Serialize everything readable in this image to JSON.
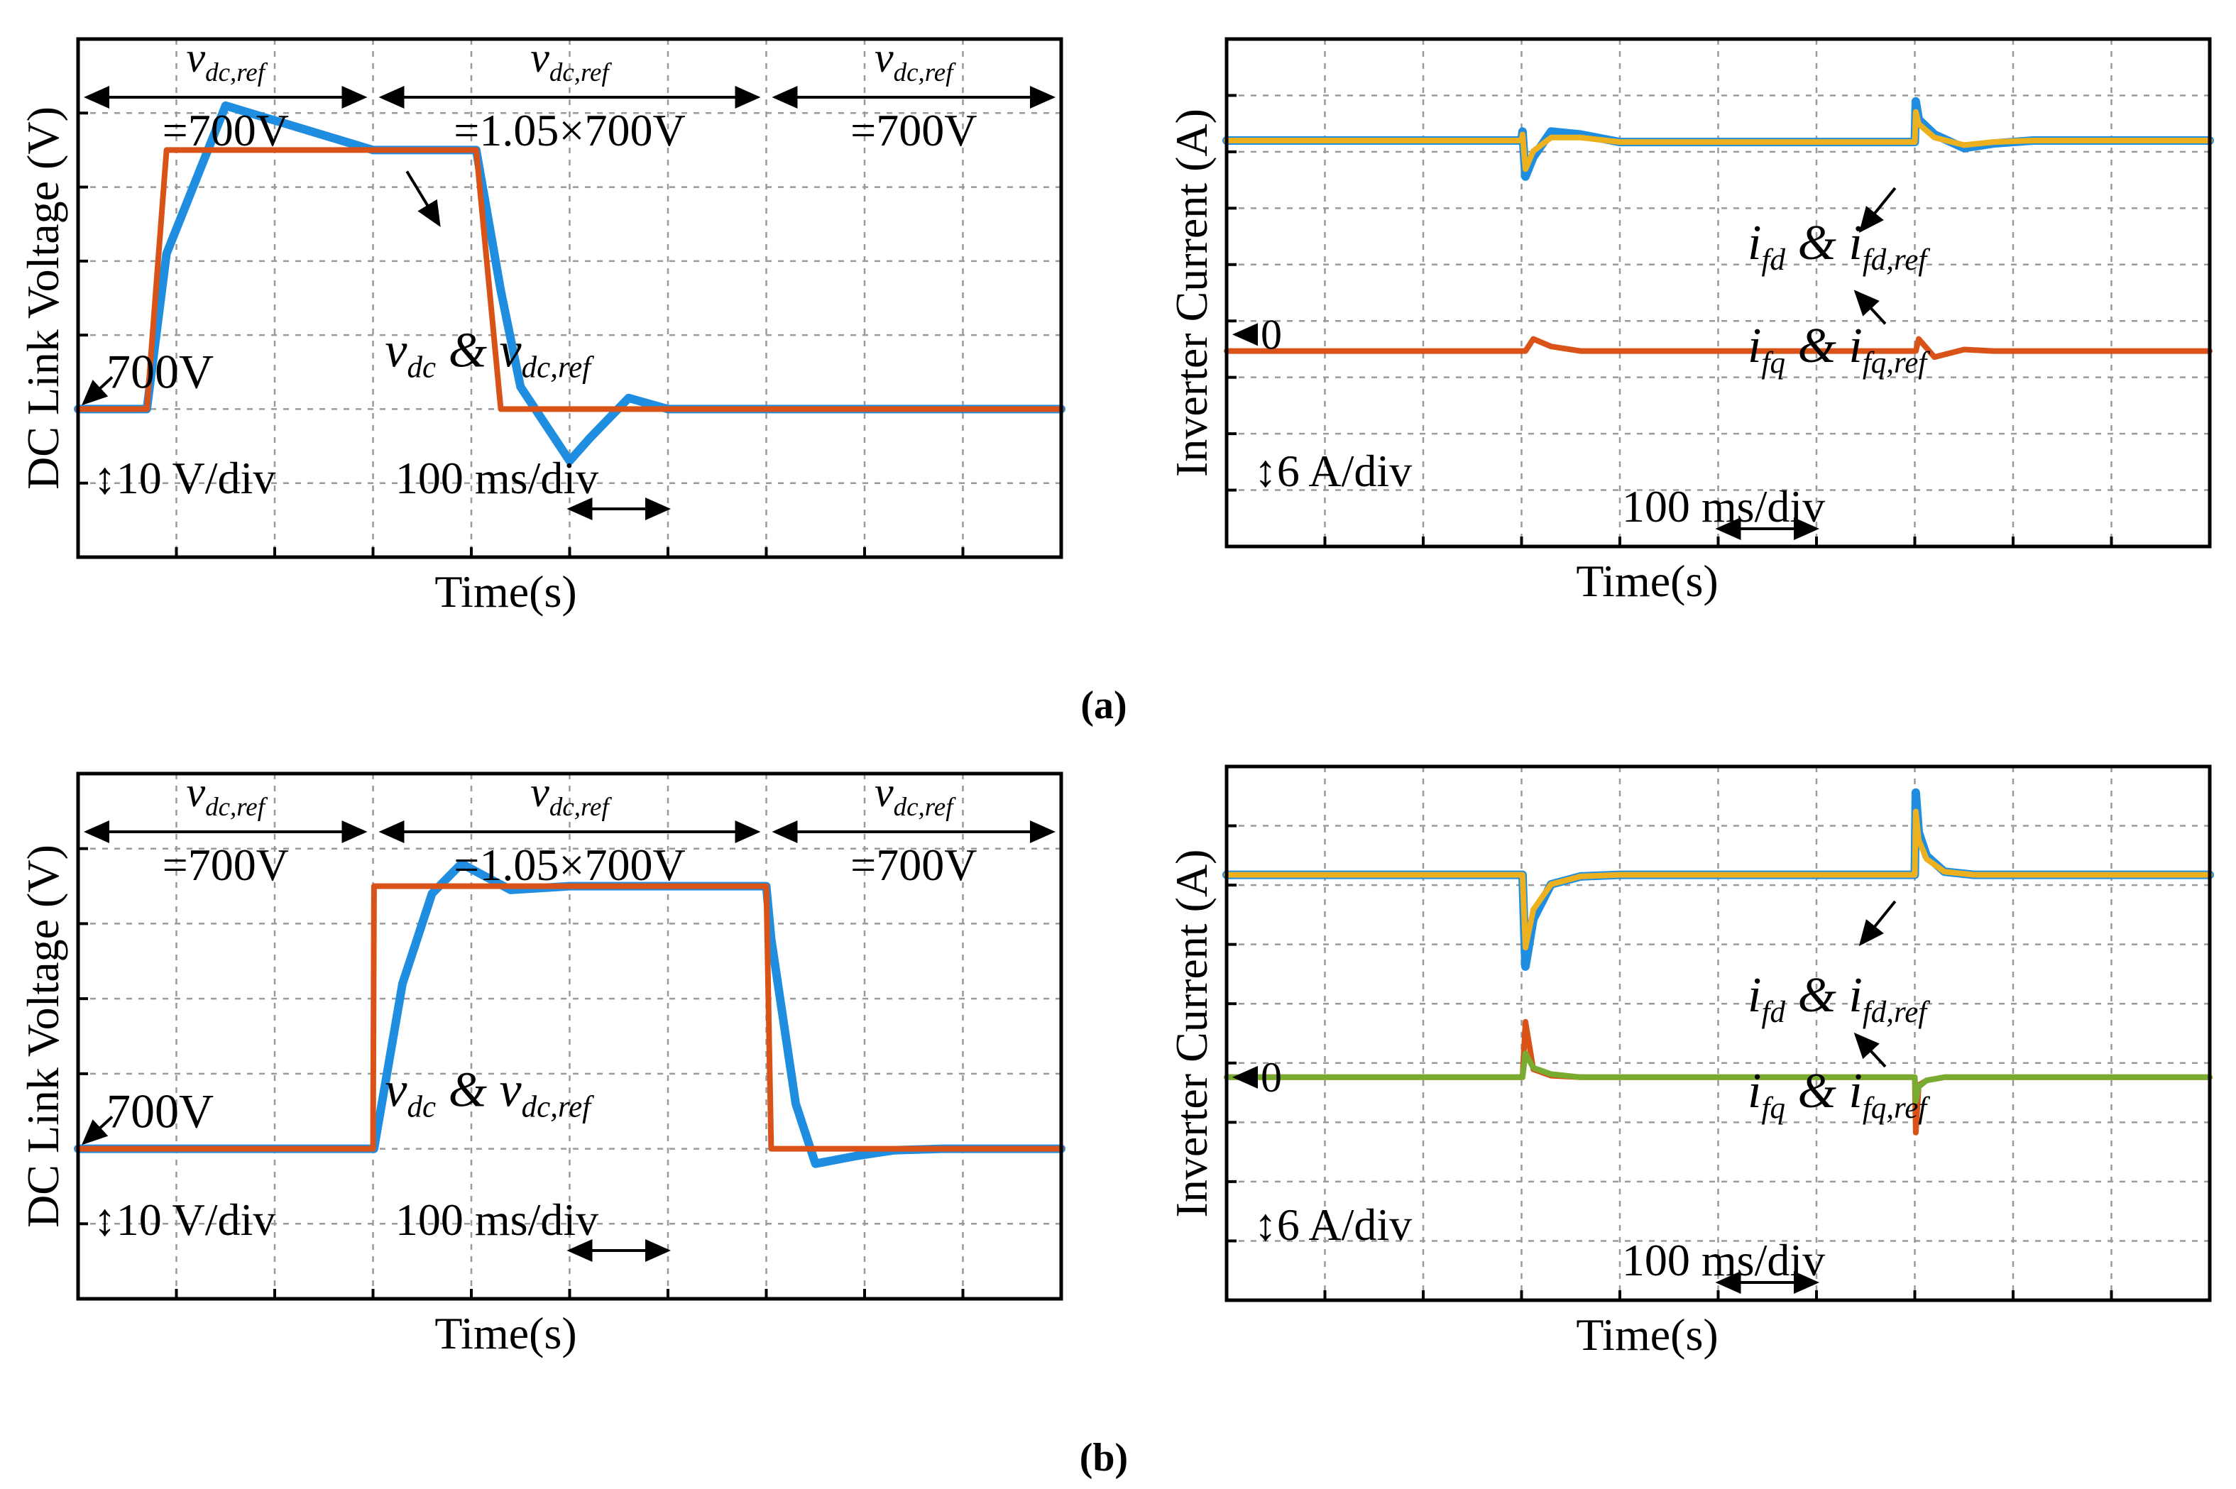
{
  "colors": {
    "measured": "#1f8ee0",
    "reference_step": "#d95319",
    "id_reference": "#edb120",
    "iq_measured": "#d95319",
    "iq_reference_b": "#77ac30",
    "grid": "#9a9a9a"
  },
  "panel_labels": {
    "a": "(a)",
    "b": "(b)"
  },
  "chart_data": [
    {
      "id": "a-left",
      "type": "line",
      "ylabel": "DC Link Voltage (V)",
      "xlabel": "Time(s)",
      "xdivs": 10,
      "ydivs": 7,
      "ylim": [
        -20,
        50
      ],
      "x": [
        0,
        0.3,
        0.4,
        0.6,
        0.7,
        0.9,
        1.5,
        3.0,
        4.0,
        4.05,
        4.3,
        4.5,
        4.8,
        5.0,
        5.2,
        5.6,
        6.0,
        6.4,
        7.0,
        10
      ],
      "series": [
        {
          "name": "v_dc",
          "color_key": "measured",
          "values": [
            0,
            0,
            0,
            0,
            0,
            21,
            41,
            35,
            35,
            35,
            16,
            3,
            -3,
            -7,
            -4,
            1.5,
            0,
            0,
            0,
            0
          ]
        },
        {
          "name": "v_dc_ref",
          "color_key": "reference_step",
          "values": [
            0,
            0,
            0,
            0,
            0,
            35,
            35,
            35,
            35,
            35,
            0,
            0,
            0,
            0,
            0,
            0,
            0,
            0,
            0,
            0
          ]
        }
      ],
      "segments": [
        {
          "top": "v",
          "sub": "dc,ref",
          "value": "=700V"
        },
        {
          "top": "v",
          "sub": "dc,ref",
          "value": "=1.05×700V"
        },
        {
          "top": "v",
          "sub": "dc,ref",
          "value": "=700V"
        }
      ],
      "base_label": "700V",
      "scale_label": "10 V/div",
      "time_label": "100 ms/div",
      "legend": [
        {
          "t": "v",
          "s": "dc"
        },
        {
          "t": " & ",
          "s": ""
        },
        {
          "t": "v",
          "s": "dc,ref"
        }
      ]
    },
    {
      "id": "a-right",
      "type": "line",
      "ylabel": "Inverter Current (A)",
      "xlabel": "Time(s)",
      "xdivs": 10,
      "ydivs": 9,
      "ylim": [
        -14.1,
        19.65
      ],
      "x": [
        0,
        3.0,
        3.01,
        3.04,
        3.12,
        3.3,
        3.6,
        4.0,
        7.0,
        7.01,
        7.04,
        7.2,
        7.5,
        7.8,
        8.2,
        10
      ],
      "series": [
        {
          "name": "i_fd",
          "color_key": "measured",
          "values": [
            12.9,
            12.9,
            13.5,
            10.5,
            11.8,
            13.5,
            13.3,
            12.8,
            12.8,
            15.5,
            14.3,
            13.3,
            12.4,
            12.7,
            12.9,
            12.9
          ]
        },
        {
          "name": "i_fd_ref",
          "color_key": "id_reference",
          "values": [
            12.9,
            12.9,
            13.3,
            11.0,
            12.2,
            13.1,
            13.1,
            12.8,
            12.8,
            14.8,
            14.0,
            13.1,
            12.6,
            12.8,
            12.9,
            12.9
          ]
        },
        {
          "name": "i_fq",
          "color_key": "iq_measured",
          "values": [
            -1.1,
            -1.1,
            -1.1,
            -1.1,
            -0.3,
            -0.8,
            -1.1,
            -1.1,
            -1.1,
            -1.1,
            -0.3,
            -1.5,
            -1.0,
            -1.1,
            -1.1,
            -1.1
          ]
        }
      ],
      "zero_label": "0",
      "scale_label": "6 A/div",
      "time_label": "100 ms/div",
      "label_d": [
        {
          "t": "i",
          "s": "fd"
        },
        {
          "t": " & ",
          "s": ""
        },
        {
          "t": "i",
          "s": "fd,ref"
        }
      ],
      "label_q": [
        {
          "t": "i",
          "s": "fq"
        },
        {
          "t": " & ",
          "s": ""
        },
        {
          "t": "i",
          "s": "fq,ref"
        }
      ]
    },
    {
      "id": "b-left",
      "type": "line",
      "ylabel": "DC Link Voltage (V)",
      "xlabel": "Time(s)",
      "xdivs": 10,
      "ydivs": 7,
      "ylim": [
        -20,
        50
      ],
      "x": [
        0,
        3.0,
        3.01,
        3.3,
        3.6,
        3.9,
        4.4,
        5.0,
        7.0,
        7.05,
        7.3,
        7.5,
        7.9,
        8.3,
        8.8,
        10
      ],
      "series": [
        {
          "name": "v_dc",
          "color_key": "measured",
          "values": [
            0,
            0,
            0,
            22,
            34,
            38,
            34.5,
            35,
            35,
            28,
            6,
            -2,
            -1,
            -0.2,
            0,
            0
          ]
        },
        {
          "name": "v_dc_ref",
          "color_key": "reference_step",
          "values": [
            0,
            0,
            35,
            35,
            35,
            35,
            35,
            35,
            35,
            0,
            0,
            0,
            0,
            0,
            0,
            0
          ]
        }
      ],
      "segments": [
        {
          "top": "v",
          "sub": "dc,ref",
          "value": "=700V"
        },
        {
          "top": "v",
          "sub": "dc,ref",
          "value": "=1.05×700V"
        },
        {
          "top": "v",
          "sub": "dc,ref",
          "value": "=700V"
        }
      ],
      "base_label": "700V",
      "scale_label": "10 V/div",
      "time_label": "100 ms/div",
      "legend": [
        {
          "t": "v",
          "s": "dc"
        },
        {
          "t": " & ",
          "s": ""
        },
        {
          "t": "v",
          "s": "dc,ref"
        }
      ]
    },
    {
      "id": "b-right",
      "type": "line",
      "ylabel": "Inverter Current (A)",
      "xlabel": "Time(s)",
      "xdivs": 10,
      "ydivs": 9,
      "ylim": [
        -14.1,
        19.65
      ],
      "x": [
        0,
        3.0,
        3.01,
        3.04,
        3.12,
        3.3,
        3.6,
        4.0,
        7.0,
        7.01,
        7.04,
        7.12,
        7.3,
        7.6,
        8.0,
        10
      ],
      "series": [
        {
          "name": "i_fd",
          "color_key": "measured",
          "values": [
            12.8,
            12.8,
            12.8,
            7.0,
            10.0,
            12.2,
            12.7,
            12.8,
            12.8,
            18.0,
            15.5,
            14.0,
            13.0,
            12.8,
            12.8,
            12.8
          ]
        },
        {
          "name": "i_fd_ref",
          "color_key": "id_reference",
          "values": [
            12.8,
            12.8,
            12.8,
            8.2,
            10.6,
            12.2,
            12.7,
            12.8,
            12.8,
            16.8,
            15.0,
            13.8,
            13.0,
            12.8,
            12.8,
            12.8
          ]
        },
        {
          "name": "i_fq",
          "color_key": "iq_measured",
          "values": [
            0,
            0,
            0,
            3.5,
            0.5,
            0.1,
            0,
            0,
            0,
            -3.5,
            -0.5,
            -0.2,
            0,
            0,
            0,
            0
          ]
        },
        {
          "name": "i_fq_ref",
          "color_key": "iq_reference_b",
          "values": [
            0,
            0,
            0,
            1.5,
            0.6,
            0.2,
            0,
            0,
            0,
            -1.5,
            -0.6,
            -0.2,
            0,
            0,
            0,
            0
          ]
        }
      ],
      "zero_label": "0",
      "scale_label": "6 A/div",
      "time_label": "100 ms/div",
      "label_d": [
        {
          "t": "i",
          "s": "fd"
        },
        {
          "t": " & ",
          "s": ""
        },
        {
          "t": "i",
          "s": "fd,ref"
        }
      ],
      "label_q": [
        {
          "t": "i",
          "s": "fq"
        },
        {
          "t": " & ",
          "s": ""
        },
        {
          "t": "i",
          "s": "fq,ref"
        }
      ]
    }
  ]
}
